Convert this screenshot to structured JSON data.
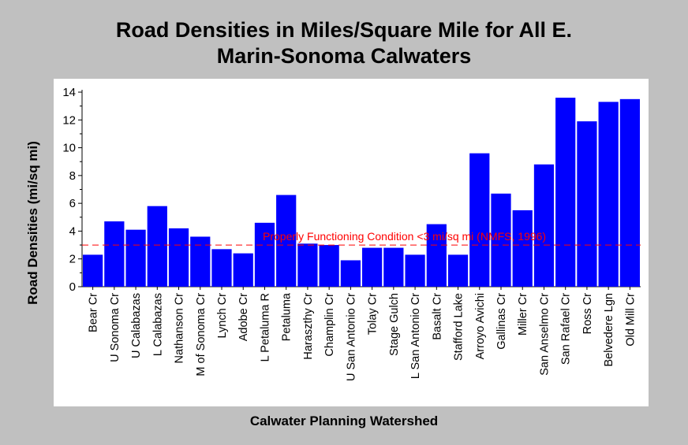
{
  "chart_data": {
    "type": "bar",
    "title_line1": "Road Densities in Miles/Square Mile for All E.",
    "title_line2": "Marin-Sonoma Calwaters",
    "xlabel": "Calwater Planning Watershed",
    "ylabel": "Road Densities (mi/sq mi)",
    "ylim": [
      0,
      14
    ],
    "yticks": [
      0,
      2,
      4,
      6,
      8,
      10,
      12,
      14
    ],
    "grid": false,
    "bar_color": "#0000ff",
    "categories": [
      "Bear Cr",
      "U Sonoma Cr",
      "U Calabazas",
      "L Calabazas",
      "Nathanson Cr",
      "M of Sonoma Cr",
      "Lynch Cr",
      "Adobe Cr",
      "L Petaluma R",
      "Petaluma",
      "Haraszthy Cr",
      "Champlin Cr",
      "U San Antonio Cr",
      "Tolay Cr",
      "Stage Gulch",
      "L San Antonio Cr",
      "Basalt Cr",
      "Stafford Lake",
      "Arroyo Avichi",
      "Gallinas Cr",
      "Miller Cr",
      "San Anselmo Cr",
      "San Rafael Cr",
      "Ross Cr",
      "Belvedere Lgn",
      "Old Mill Cr"
    ],
    "values": [
      2.3,
      4.7,
      4.1,
      5.8,
      4.2,
      3.6,
      2.7,
      2.4,
      4.6,
      6.6,
      3.1,
      3.0,
      1.9,
      2.8,
      2.8,
      2.3,
      4.5,
      2.3,
      9.6,
      6.7,
      5.5,
      8.8,
      13.6,
      11.9,
      13.3,
      13.5
    ],
    "reference_line": {
      "y": 3.0,
      "label": "Properly Functioning Condition <3 mi/sq mi (NMFS, 1996)",
      "color": "#ff0000"
    }
  }
}
